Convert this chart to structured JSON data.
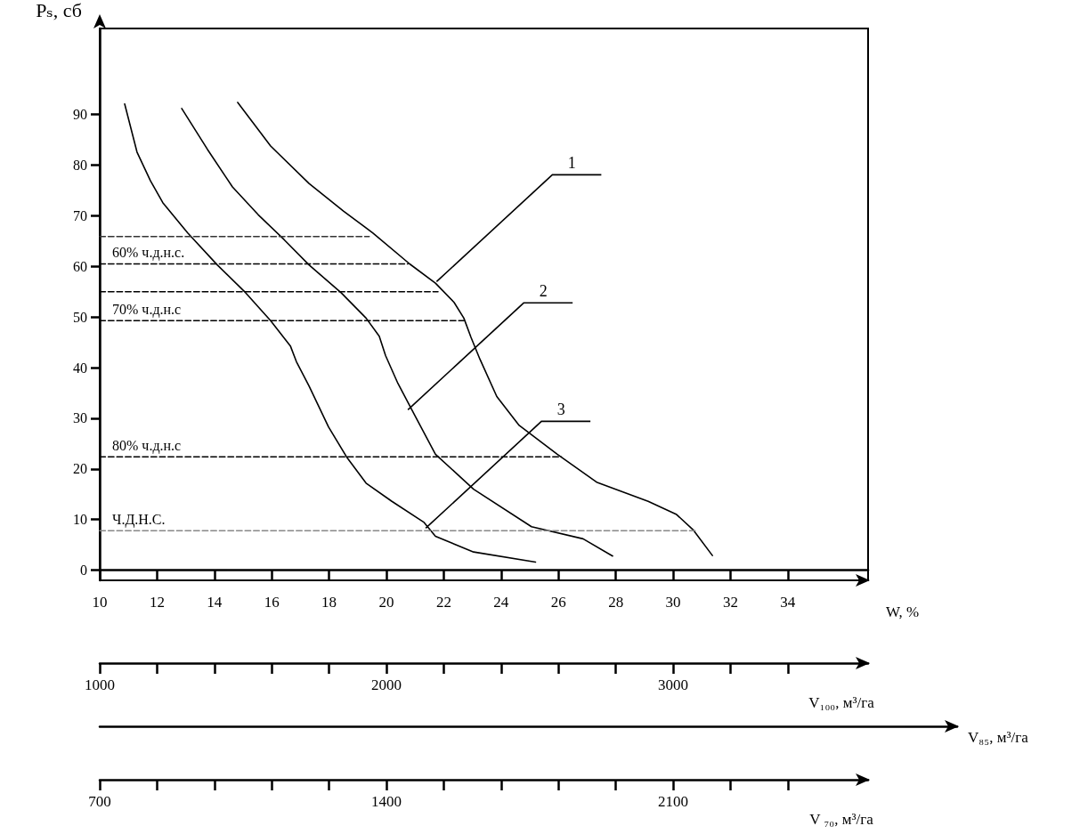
{
  "chart_data": [
    {
      "type": "line",
      "xlabel": "W, %",
      "ylabel": "Pₛ, сб",
      "xlim": [
        10,
        36.8
      ],
      "xticks": [
        10,
        12,
        14,
        16,
        18,
        20,
        22,
        24,
        26,
        28,
        30,
        32,
        34
      ],
      "ylim": [
        -2,
        107
      ],
      "yticks": [
        0,
        10,
        20,
        30,
        40,
        50,
        60,
        70,
        80,
        90
      ],
      "x2label": "V₁₀₀, м³/га",
      "x2lim": [
        1000,
        3680
      ],
      "x2ticks": [
        1000,
        {
          "value": 1200,
          "label": null
        },
        {
          "value": 1400,
          "label": null
        },
        {
          "value": 1600,
          "label": null
        },
        {
          "value": 1800,
          "label": null
        },
        2000,
        {
          "value": 2200,
          "label": null
        },
        {
          "value": 2400,
          "label": null
        },
        {
          "value": 2600,
          "label": null
        },
        {
          "value": 2800,
          "label": null
        },
        3000,
        {
          "value": 3200,
          "label": null
        },
        {
          "value": 3400,
          "label": null
        }
      ],
      "grid": false,
      "marker": "none",
      "series": [
        {
          "color": "#000000",
          "line_style": "solid",
          "x": [
            10.87,
            11.3,
            11.77,
            12.2,
            13.07,
            14.1,
            15.09,
            15.96,
            16.65,
            16.86,
            17.3,
            17.98,
            18.63,
            19.29,
            20.19,
            21.3,
            21.71,
            23.04,
            25.2
          ],
          "values": [
            92.1,
            82.6,
            76.9,
            72.6,
            66.6,
            60.3,
            54.8,
            49.3,
            44.3,
            41.2,
            36.4,
            28.3,
            22.2,
            17.2,
            13.6,
            9.5,
            6.7,
            3.6,
            1.6
          ]
        },
        {
          "color": "#000000",
          "line_style": "solid",
          "x": [
            12.86,
            13.76,
            14.63,
            15.53,
            16.43,
            17.3,
            18.42,
            19.29,
            19.75,
            19.97,
            20.4,
            20.96,
            21.71,
            23.04,
            25.06,
            26.86,
            27.89
          ],
          "values": [
            91.2,
            83.1,
            75.7,
            70.2,
            65.3,
            60.3,
            54.8,
            49.8,
            46.2,
            42.4,
            36.9,
            30.9,
            22.9,
            16,
            8.6,
            6.2,
            2.8
          ]
        },
        {
          "color": "#000000",
          "line_style": "solid",
          "x": [
            14.81,
            15.96,
            17.3,
            18.51,
            19.53,
            20.81,
            21.71,
            22.36,
            22.7,
            22.95,
            23.26,
            23.85,
            24.63,
            25.96,
            27.33,
            29.13,
            30.12,
            30.71,
            31.37
          ],
          "values": [
            92.4,
            83.8,
            76.4,
            70.9,
            66.6,
            60.5,
            56.7,
            52.9,
            49.8,
            46,
            41.7,
            34.3,
            28.6,
            22.9,
            17.4,
            13.6,
            11,
            7.9,
            2.9
          ]
        },
        {
          "color": "#333333",
          "line_style": "dashed",
          "x": [
            10,
            19.4
          ],
          "values": [
            65.9,
            65.9
          ]
        },
        {
          "color": "#000000",
          "line_style": "dashed",
          "x": [
            10,
            20.75
          ],
          "values": [
            60.5,
            60.5
          ]
        },
        {
          "color": "#000000",
          "line_style": "dashed",
          "x": [
            10,
            21.8
          ],
          "values": [
            55,
            55
          ]
        },
        {
          "color": "#000000",
          "line_style": "dashed",
          "x": [
            10,
            22.7
          ],
          "values": [
            49.3,
            49.3
          ]
        },
        {
          "color": "#000000",
          "line_style": "dashed",
          "x": [
            10,
            26.1
          ],
          "values": [
            22.4,
            22.4
          ]
        },
        {
          "color": "#888888",
          "line_style": "dashed",
          "x": [
            10,
            30.8
          ],
          "values": [
            7.8,
            7.8
          ]
        }
      ],
      "annotations": [
        "V₈₅, м³/га",
        {
          "text": "60% ч.д.н.с.",
          "x": 10,
          "y": 60.5
        },
        {
          "text": "70% ч.д.н.с",
          "x": 10,
          "y": 49.3
        },
        {
          "text": "80% ч.д.н.с",
          "x": 10,
          "y": 22.4
        },
        {
          "text": "Ч.Д.Н.С.",
          "x": 10,
          "y": 7.8
        },
        {
          "text": "1",
          "x": 21.75,
          "y": 57
        },
        {
          "text": "2",
          "x": 20.75,
          "y": 31.7
        },
        {
          "text": "3",
          "x": 21.37,
          "y": 8.3
        }
      ]
    },
    {
      "type": "other",
      "xlabel": "V ₇₀, м³/га",
      "annotations": [
        "700",
        "1400",
        "2100"
      ]
    }
  ]
}
